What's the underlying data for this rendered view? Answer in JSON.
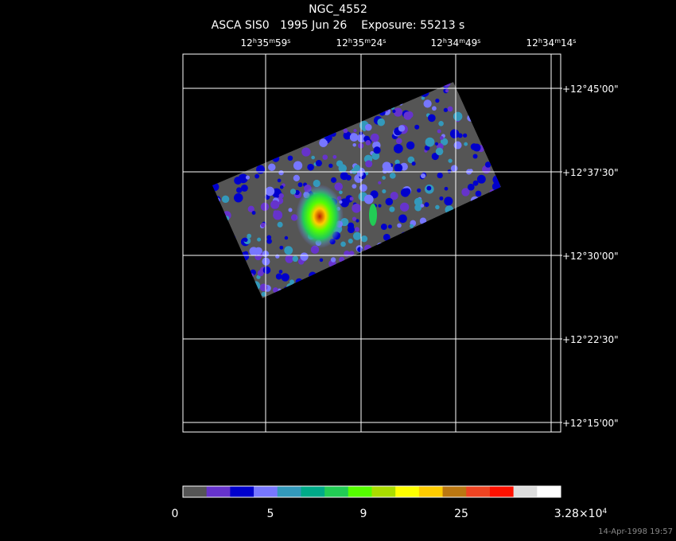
{
  "title": "NGC_4552",
  "subtitle": "ASCA SIS0   1995 Jun 26    Exposure: 55213 s",
  "ra_labels": [
    [
      "12",
      "h",
      "35",
      "m",
      "59",
      "s"
    ],
    [
      "12",
      "h",
      "35",
      "m",
      "24",
      "s"
    ],
    [
      "12",
      "h",
      "34",
      "m",
      "49",
      "s"
    ],
    [
      "12",
      "h",
      "34",
      "m",
      "14",
      "s"
    ]
  ],
  "dec_labels": [
    "+12°45'00\"",
    "+12°37'30\"",
    "+12°30'00\"",
    "+12°22'30\"",
    "+12°15'00\""
  ],
  "colorbar": {
    "colors": [
      "#555555",
      "#6633cc",
      "#0000cc",
      "#7777ff",
      "#3399bb",
      "#00aa88",
      "#22cc55",
      "#55ff00",
      "#aadd00",
      "#ffff00",
      "#ffcc00",
      "#bb7711",
      "#ee4422",
      "#ff1100",
      "#dddddd",
      "#ffffff"
    ],
    "labels": [
      "0",
      "5",
      "9",
      "25"
    ],
    "max_label": [
      "3.28×10",
      "4"
    ]
  },
  "timestamp": "14-Apr-1998 19:57"
}
